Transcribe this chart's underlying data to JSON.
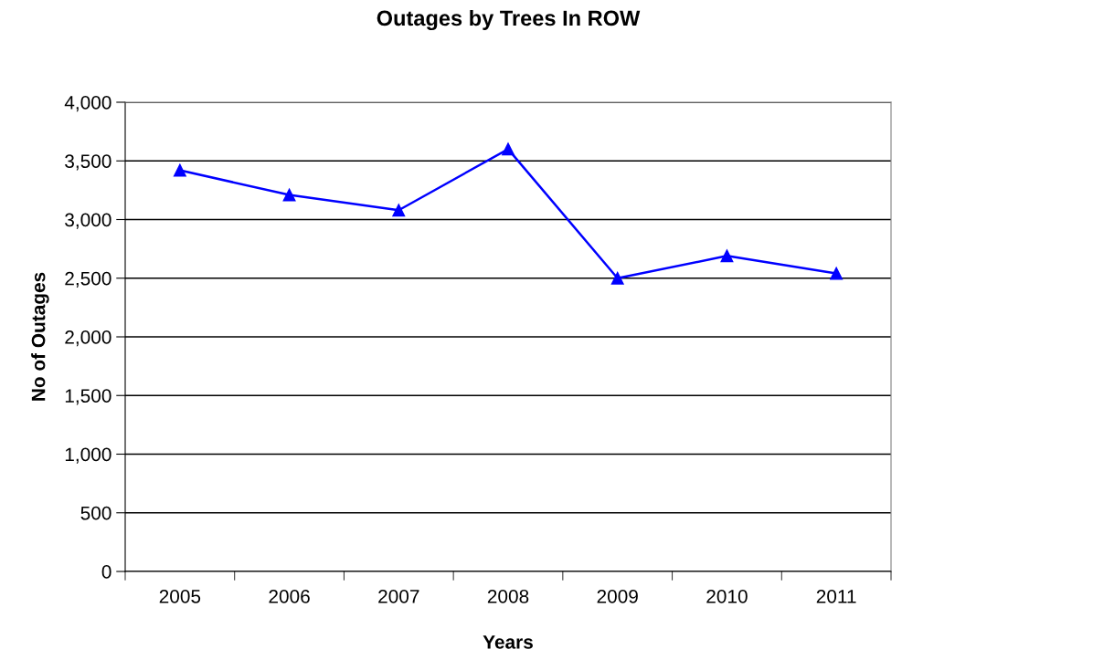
{
  "chart_data": {
    "type": "line",
    "title": "Outages by Trees In ROW",
    "xlabel": "Years",
    "ylabel": "No of Outages",
    "categories": [
      "2005",
      "2006",
      "2007",
      "2008",
      "2009",
      "2010",
      "2011"
    ],
    "series": [
      {
        "color": "#0000ff",
        "values": [
          3420,
          3210,
          3080,
          3600,
          2500,
          2690,
          2540
        ]
      }
    ],
    "ylim": [
      0,
      4000
    ],
    "yticks": [
      0,
      {
        "value": 500,
        "label": "500"
      },
      {
        "value": 1000,
        "label": "1,000"
      },
      {
        "value": 1500,
        "label": "1,500"
      },
      {
        "value": 2000,
        "label": "2,000"
      },
      {
        "value": 2500,
        "label": "2,500"
      },
      {
        "value": 3000,
        "label": "3,000"
      },
      {
        "value": 3500,
        "label": "3,500"
      },
      {
        "value": 4000,
        "label": "4,000"
      }
    ],
    "grid": "y",
    "marker": "triangle",
    "line_style": "solid"
  }
}
